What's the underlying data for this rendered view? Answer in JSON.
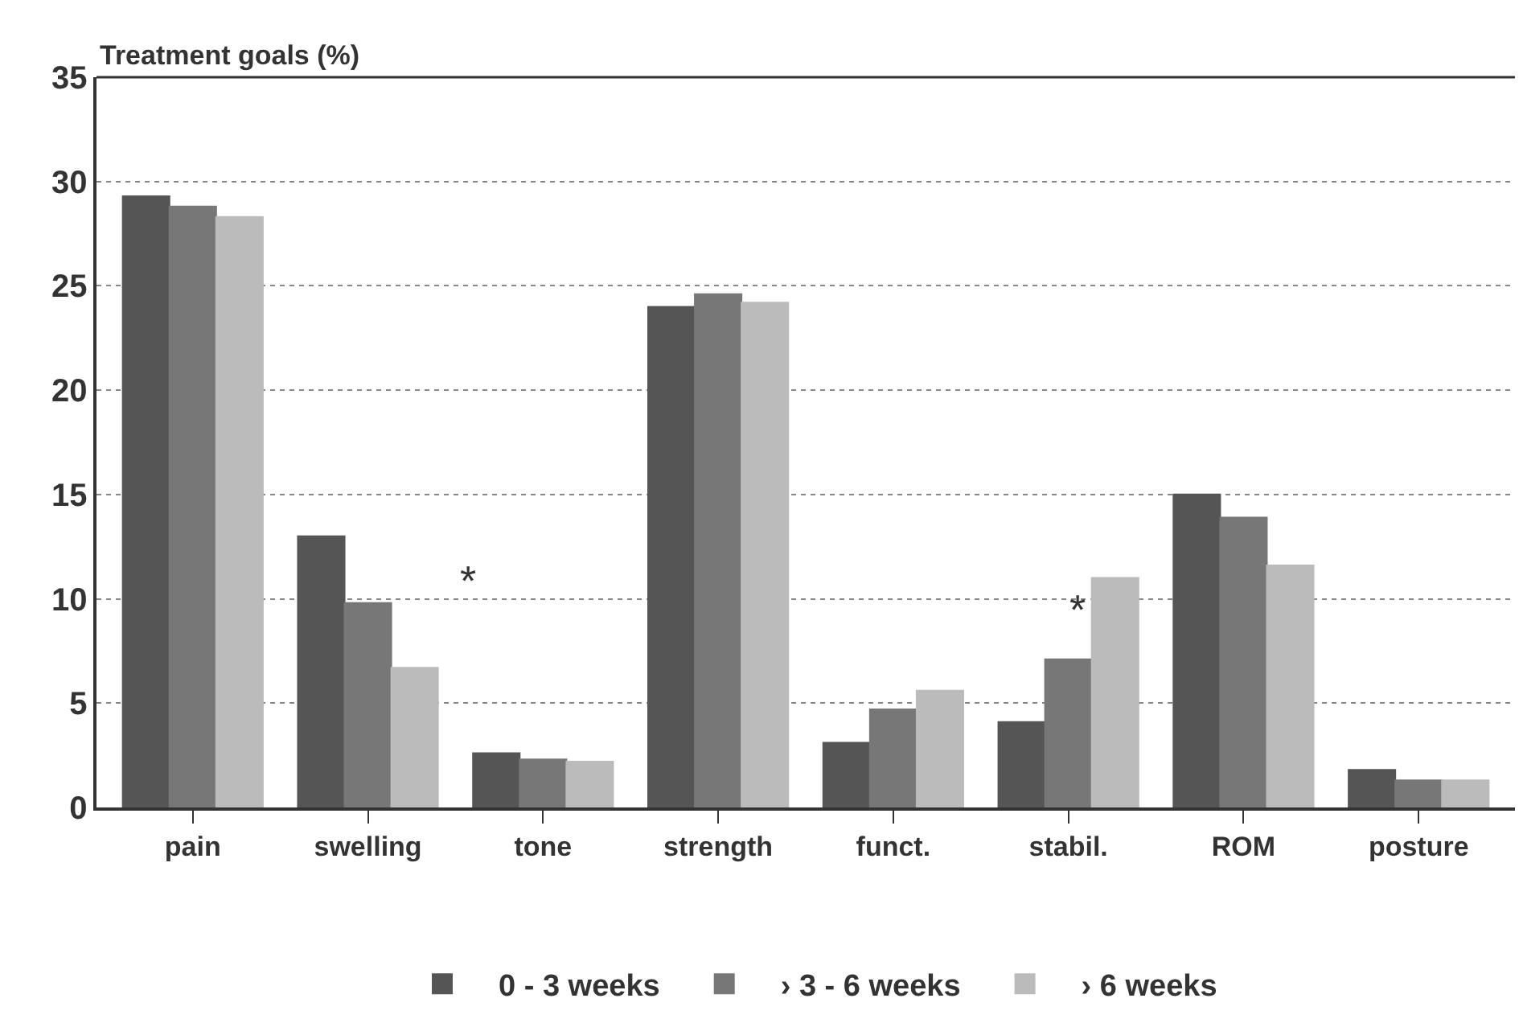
{
  "chart_data": {
    "type": "bar",
    "ylabel": "Treatment goals (%)",
    "categories": [
      "pain",
      "swelling",
      "tone",
      "strength",
      "funct.",
      "stabil.",
      "ROM",
      "posture"
    ],
    "series": [
      {
        "name": "0 - 3 weeks",
        "color": "#555555",
        "values": [
          29.3,
          13.0,
          2.6,
          24.0,
          3.1,
          4.1,
          15.0,
          1.8
        ]
      },
      {
        "name": "› 3 - 6 weeks",
        "color": "#777777",
        "values": [
          28.8,
          9.8,
          2.3,
          24.6,
          4.7,
          7.1,
          13.9,
          1.3
        ]
      },
      {
        "name": "› 6 weeks",
        "color": "#bbbbbb",
        "values": [
          28.3,
          6.7,
          2.2,
          24.2,
          5.6,
          11.0,
          11.6,
          1.3
        ]
      }
    ],
    "annotations": [
      "*",
      "*"
    ],
    "ylim": [
      0,
      35
    ],
    "yticks": [
      0,
      5,
      10,
      15,
      20,
      25,
      30,
      35
    ],
    "grid": "y",
    "legend": "bottom"
  }
}
